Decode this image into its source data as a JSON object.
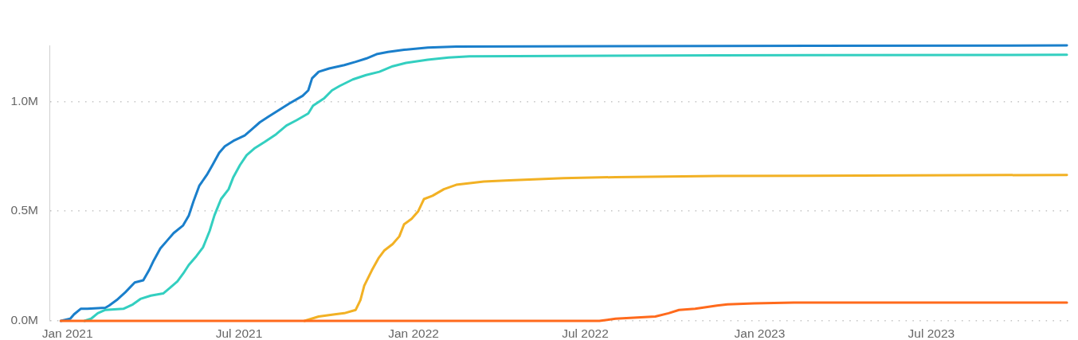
{
  "chart_data": {
    "type": "line",
    "grid": "y",
    "legend": false,
    "marker": "none",
    "line_style": "solid",
    "xlim": [
      "2020-12-13",
      "2023-11-26"
    ],
    "xticks": [
      {
        "value": "2021-01-01",
        "label": "Jan 2021"
      },
      {
        "value": "2021-07-01",
        "label": "Jul 2021"
      },
      {
        "value": "2022-01-01",
        "label": "Jan 2022"
      },
      {
        "value": "2022-07-01",
        "label": "Jul 2022"
      },
      {
        "value": "2023-01-01",
        "label": "Jan 2023"
      },
      {
        "value": "2023-07-01",
        "label": "Jul 2023"
      }
    ],
    "ylim": [
      0,
      1255000
    ],
    "yticks": [
      {
        "value": 0,
        "label": "0.0M"
      },
      {
        "value": 500000,
        "label": "0.5M"
      },
      {
        "value": 1000000,
        "label": "1.0M"
      }
    ],
    "series": [
      {
        "color": "#1a7fcb",
        "x": [
          "2020-12-25",
          "2021-01-04",
          "2021-01-08",
          "2021-01-15",
          "2021-01-22",
          "2021-02-10",
          "2021-02-14",
          "2021-02-22",
          "2021-03-03",
          "2021-03-13",
          "2021-03-22",
          "2021-03-28",
          "2021-04-02",
          "2021-04-09",
          "2021-04-16",
          "2021-04-23",
          "2021-05-03",
          "2021-05-09",
          "2021-05-14",
          "2021-05-20",
          "2021-05-28",
          "2021-06-03",
          "2021-06-10",
          "2021-06-16",
          "2021-06-25",
          "2021-07-07",
          "2021-07-15",
          "2021-07-23",
          "2021-08-01",
          "2021-08-12",
          "2021-08-23",
          "2021-09-06",
          "2021-09-12",
          "2021-09-16",
          "2021-09-23",
          "2021-10-04",
          "2021-10-20",
          "2021-11-01",
          "2021-11-12",
          "2021-11-23",
          "2021-12-05",
          "2021-12-22",
          "2022-01-16",
          "2022-02-15",
          "2022-11-17",
          "2023-11-21"
        ],
        "values": [
          0,
          10000,
          30000,
          55000,
          55000,
          60000,
          70000,
          95000,
          130000,
          175000,
          185000,
          230000,
          275000,
          330000,
          365000,
          400000,
          435000,
          480000,
          545000,
          615000,
          665000,
          710000,
          765000,
          795000,
          820000,
          845000,
          875000,
          905000,
          930000,
          960000,
          990000,
          1025000,
          1050000,
          1105000,
          1135000,
          1150000,
          1165000,
          1180000,
          1195000,
          1215000,
          1225000,
          1235000,
          1245000,
          1250000,
          1252000,
          1255000
        ]
      },
      {
        "color": "#33cfc0",
        "x": [
          "2021-01-19",
          "2021-01-26",
          "2021-02-02",
          "2021-02-10",
          "2021-03-01",
          "2021-03-11",
          "2021-03-19",
          "2021-03-30",
          "2021-04-12",
          "2021-04-19",
          "2021-04-27",
          "2021-05-03",
          "2021-05-09",
          "2021-05-17",
          "2021-05-24",
          "2021-05-31",
          "2021-06-05",
          "2021-06-12",
          "2021-06-20",
          "2021-06-25",
          "2021-07-02",
          "2021-07-09",
          "2021-07-17",
          "2021-07-28",
          "2021-08-09",
          "2021-08-20",
          "2021-08-31",
          "2021-09-12",
          "2021-09-17",
          "2021-09-29",
          "2021-10-07",
          "2021-10-15",
          "2021-10-29",
          "2021-11-12",
          "2021-11-26",
          "2021-12-10",
          "2021-12-24",
          "2022-01-16",
          "2022-02-07",
          "2022-03-01",
          "2022-11-17",
          "2023-11-21"
        ],
        "values": [
          0,
          10000,
          35000,
          50000,
          55000,
          75000,
          100000,
          115000,
          125000,
          150000,
          180000,
          215000,
          255000,
          295000,
          335000,
          410000,
          480000,
          555000,
          600000,
          655000,
          710000,
          755000,
          785000,
          815000,
          850000,
          890000,
          915000,
          945000,
          980000,
          1015000,
          1050000,
          1070000,
          1100000,
          1120000,
          1135000,
          1160000,
          1175000,
          1190000,
          1200000,
          1205000,
          1210000,
          1212000
        ]
      },
      {
        "color": "#f2b124",
        "x": [
          "2021-09-08",
          "2021-09-23",
          "2021-10-10",
          "2021-10-20",
          "2021-11-01",
          "2021-11-06",
          "2021-11-10",
          "2021-11-18",
          "2021-11-25",
          "2021-12-01",
          "2021-12-10",
          "2021-12-17",
          "2021-12-22",
          "2021-12-30",
          "2022-01-06",
          "2022-01-12",
          "2022-01-21",
          "2022-02-02",
          "2022-02-15",
          "2022-03-16",
          "2022-04-12",
          "2022-06-08",
          "2022-08-02",
          "2022-11-17",
          "2023-11-21"
        ],
        "values": [
          0,
          20000,
          30000,
          35000,
          50000,
          95000,
          160000,
          230000,
          285000,
          320000,
          350000,
          385000,
          440000,
          465000,
          500000,
          555000,
          570000,
          600000,
          620000,
          635000,
          640000,
          650000,
          655000,
          660000,
          665000
        ]
      },
      {
        "color": "#ff6a1c",
        "x": [
          "2020-12-25",
          "2022-07-16",
          "2022-08-02",
          "2022-09-13",
          "2022-09-27",
          "2022-10-08",
          "2022-10-25",
          "2022-11-17",
          "2022-11-28",
          "2022-12-26",
          "2023-02-06",
          "2023-11-21"
        ],
        "values": [
          0,
          0,
          10000,
          20000,
          35000,
          50000,
          55000,
          70000,
          75000,
          80000,
          83000,
          83000
        ]
      }
    ]
  }
}
